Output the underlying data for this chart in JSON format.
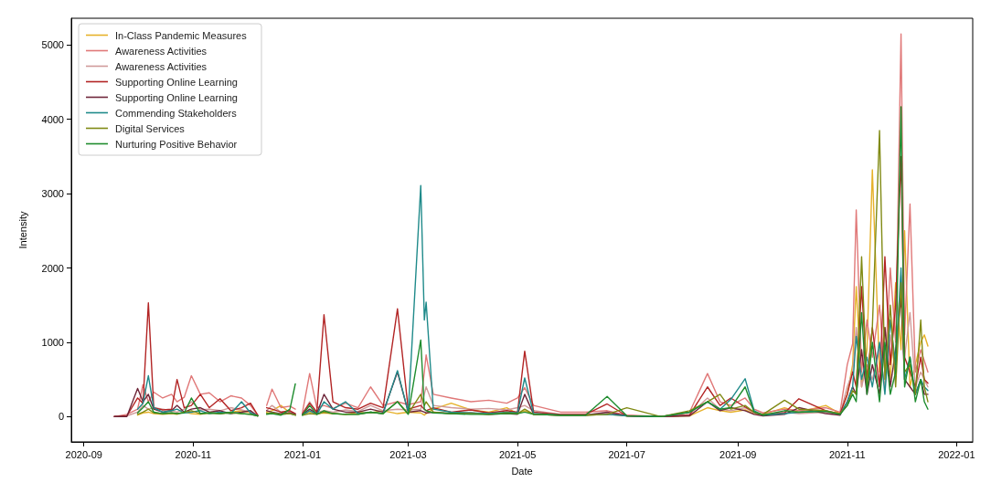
{
  "chart_data": {
    "type": "line",
    "xlabel": "Date",
    "ylabel": "Intensity",
    "legend": "top left",
    "grid": false,
    "marker": "none",
    "line_style": "solid",
    "xlim": [
      "2020-08-25",
      "2022-01-10"
    ],
    "xticks": [
      "2020-09",
      "2020-11",
      "2021-01",
      "2021-03",
      "2021-05",
      "2021-07",
      "2021-09",
      "2021-11",
      "2022-01"
    ],
    "ylim": [
      -340,
      5360
    ],
    "yticks": [
      0,
      1000,
      2000,
      3000,
      4000,
      5000
    ],
    "x": [
      "2020-09-18",
      "2020-09-25",
      "2020-10-01",
      "2020-10-04",
      "2020-10-07",
      "2020-10-10",
      "2020-10-15",
      "2020-10-20",
      "2020-10-23",
      "2020-10-27",
      "2020-10-31",
      "2020-11-05",
      "2020-11-10",
      "2020-11-16",
      "2020-11-22",
      "2020-11-28",
      "2020-12-03",
      "2020-12-07",
      "2020-12-09",
      "2020-12-12",
      "2020-12-15",
      "2020-12-20",
      "2020-12-25",
      "2020-12-28",
      "2020-12-30",
      "2021-01-01",
      "2021-01-05",
      "2021-01-09",
      "2021-01-13",
      "2021-01-18",
      "2021-01-25",
      "2021-02-01",
      "2021-02-08",
      "2021-02-15",
      "2021-02-23",
      "2021-03-01",
      "2021-03-08",
      "2021-03-10",
      "2021-03-11",
      "2021-03-15",
      "2021-03-25",
      "2021-04-05",
      "2021-04-15",
      "2021-04-25",
      "2021-05-01",
      "2021-05-05",
      "2021-05-10",
      "2021-05-25",
      "2021-06-08",
      "2021-06-20",
      "2021-07-01",
      "2021-07-20",
      "2021-08-05",
      "2021-08-15",
      "2021-08-22",
      "2021-08-28",
      "2021-09-05",
      "2021-09-10",
      "2021-09-15",
      "2021-09-27",
      "2021-10-05",
      "2021-10-20",
      "2021-10-28",
      "2021-11-01",
      "2021-11-04",
      "2021-11-06",
      "2021-11-09",
      "2021-11-12",
      "2021-11-15",
      "2021-11-19",
      "2021-11-22",
      "2021-11-25",
      "2021-11-28",
      "2021-12-01",
      "2021-12-03",
      "2021-12-06",
      "2021-12-09",
      "2021-12-12",
      "2021-12-14",
      "2021-12-16"
    ],
    "series": [
      {
        "name": "In-Class Pandemic Measures",
        "color": "#e6b12a",
        "values": [
          null,
          null,
          20,
          50,
          60,
          40,
          30,
          40,
          30,
          60,
          40,
          30,
          50,
          40,
          60,
          80,
          50,
          10,
          null,
          60,
          80,
          150,
          50,
          20,
          null,
          30,
          60,
          40,
          50,
          40,
          30,
          60,
          50,
          80,
          40,
          60,
          50,
          20,
          40,
          100,
          180,
          90,
          60,
          120,
          40,
          80,
          30,
          20,
          20,
          30,
          10,
          0,
          10,
          120,
          80,
          60,
          90,
          40,
          30,
          120,
          60,
          150,
          40,
          300,
          700,
          1750,
          400,
          900,
          3320,
          600,
          1200,
          500,
          1800,
          900,
          2500,
          400,
          700,
          1000,
          1100,
          950
        ]
      },
      {
        "name": "Awareness Activities",
        "color": "#e07878",
        "values": [
          0,
          30,
          100,
          430,
          200,
          330,
          250,
          300,
          200,
          260,
          550,
          300,
          320,
          200,
          280,
          250,
          150,
          20,
          null,
          150,
          370,
          120,
          140,
          100,
          null,
          60,
          580,
          120,
          150,
          110,
          180,
          120,
          400,
          150,
          200,
          160,
          200,
          600,
          830,
          300,
          250,
          200,
          220,
          180,
          250,
          390,
          150,
          60,
          60,
          80,
          20,
          0,
          60,
          580,
          200,
          150,
          250,
          100,
          50,
          100,
          80,
          120,
          60,
          700,
          980,
          2780,
          600,
          1300,
          800,
          1500,
          600,
          2000,
          1000,
          5150,
          1100,
          2860,
          600,
          900,
          750,
          600
        ]
      },
      {
        "name": "Awareness Activities",
        "color": "#d09a9a",
        "values": [
          0,
          10,
          60,
          150,
          100,
          120,
          100,
          80,
          60,
          100,
          200,
          90,
          100,
          80,
          120,
          90,
          60,
          10,
          null,
          80,
          150,
          60,
          70,
          40,
          null,
          40,
          200,
          60,
          80,
          60,
          90,
          70,
          150,
          80,
          100,
          90,
          100,
          300,
          400,
          150,
          120,
          100,
          110,
          90,
          120,
          150,
          80,
          30,
          30,
          40,
          10,
          0,
          30,
          250,
          100,
          80,
          120,
          50,
          30,
          60,
          40,
          60,
          30,
          400,
          600,
          1200,
          400,
          700,
          500,
          900,
          400,
          1100,
          600,
          1900,
          800,
          1400,
          400,
          600,
          500,
          400
        ]
      },
      {
        "name": "Supporting Online Learning",
        "color": "#b22424",
        "values": [
          0,
          10,
          250,
          180,
          1530,
          120,
          90,
          100,
          500,
          120,
          150,
          300,
          120,
          240,
          80,
          120,
          180,
          20,
          null,
          120,
          100,
          60,
          80,
          40,
          null,
          40,
          180,
          60,
          1370,
          200,
          120,
          100,
          180,
          120,
          1450,
          100,
          150,
          100,
          80,
          120,
          60,
          90,
          50,
          80,
          60,
          880,
          60,
          30,
          30,
          170,
          10,
          0,
          20,
          400,
          150,
          250,
          130,
          60,
          20,
          50,
          240,
          80,
          40,
          300,
          600,
          400,
          1750,
          500,
          1200,
          400,
          2150,
          700,
          1500,
          3500,
          800,
          600,
          400,
          800,
          500,
          450
        ]
      },
      {
        "name": "Supporting Online Learning",
        "color": "#6e2639",
        "values": [
          0,
          0,
          380,
          200,
          300,
          100,
          60,
          80,
          150,
          60,
          100,
          120,
          60,
          80,
          40,
          60,
          80,
          10,
          null,
          80,
          60,
          40,
          50,
          30,
          null,
          30,
          100,
          40,
          300,
          100,
          60,
          60,
          100,
          60,
          600,
          60,
          80,
          60,
          50,
          60,
          40,
          50,
          30,
          40,
          30,
          300,
          30,
          20,
          20,
          60,
          10,
          0,
          10,
          200,
          80,
          120,
          80,
          30,
          10,
          30,
          120,
          40,
          20,
          200,
          400,
          300,
          900,
          300,
          700,
          300,
          1200,
          400,
          900,
          1600,
          500,
          400,
          300,
          500,
          300,
          300
        ]
      },
      {
        "name": "Commending Stakeholders",
        "color": "#1f8a8a",
        "values": [
          null,
          null,
          100,
          180,
          550,
          120,
          60,
          80,
          100,
          50,
          60,
          80,
          40,
          60,
          40,
          200,
          50,
          10,
          null,
          40,
          50,
          30,
          40,
          20,
          null,
          20,
          80,
          30,
          200,
          100,
          200,
          40,
          60,
          40,
          620,
          60,
          3110,
          1300,
          1540,
          100,
          60,
          50,
          40,
          60,
          50,
          520,
          40,
          20,
          20,
          30,
          10,
          0,
          60,
          200,
          100,
          230,
          510,
          80,
          20,
          40,
          60,
          80,
          30,
          200,
          400,
          1080,
          500,
          800,
          400,
          1000,
          300,
          1300,
          700,
          2000,
          500,
          800,
          300,
          500,
          400,
          350
        ]
      },
      {
        "name": "Digital Services",
        "color": "#808a14",
        "values": [
          null,
          null,
          30,
          60,
          100,
          50,
          40,
          50,
          40,
          60,
          80,
          40,
          50,
          40,
          50,
          40,
          30,
          10,
          null,
          40,
          50,
          30,
          40,
          20,
          null,
          20,
          40,
          30,
          60,
          40,
          30,
          30,
          60,
          40,
          200,
          40,
          300,
          150,
          200,
          60,
          40,
          40,
          30,
          50,
          40,
          100,
          30,
          20,
          20,
          30,
          120,
          0,
          80,
          200,
          300,
          100,
          150,
          60,
          30,
          220,
          100,
          80,
          40,
          150,
          350,
          300,
          2150,
          400,
          1200,
          3850,
          500,
          1500,
          400,
          1800,
          600,
          700,
          300,
          1300,
          400,
          200
        ]
      },
      {
        "name": "Nurturing Positive Behavior",
        "color": "#1e8c2e",
        "values": [
          null,
          null,
          50,
          120,
          200,
          60,
          40,
          50,
          40,
          50,
          250,
          40,
          50,
          40,
          60,
          40,
          30,
          10,
          null,
          30,
          40,
          20,
          100,
          440,
          null,
          20,
          150,
          30,
          80,
          40,
          30,
          30,
          60,
          40,
          200,
          30,
          1030,
          100,
          80,
          50,
          40,
          30,
          30,
          40,
          40,
          60,
          30,
          20,
          20,
          270,
          10,
          0,
          60,
          200,
          100,
          120,
          400,
          60,
          20,
          80,
          60,
          70,
          30,
          150,
          300,
          200,
          1400,
          300,
          1000,
          200,
          1000,
          300,
          600,
          4170,
          400,
          800,
          200,
          500,
          200,
          100
        ]
      }
    ]
  }
}
